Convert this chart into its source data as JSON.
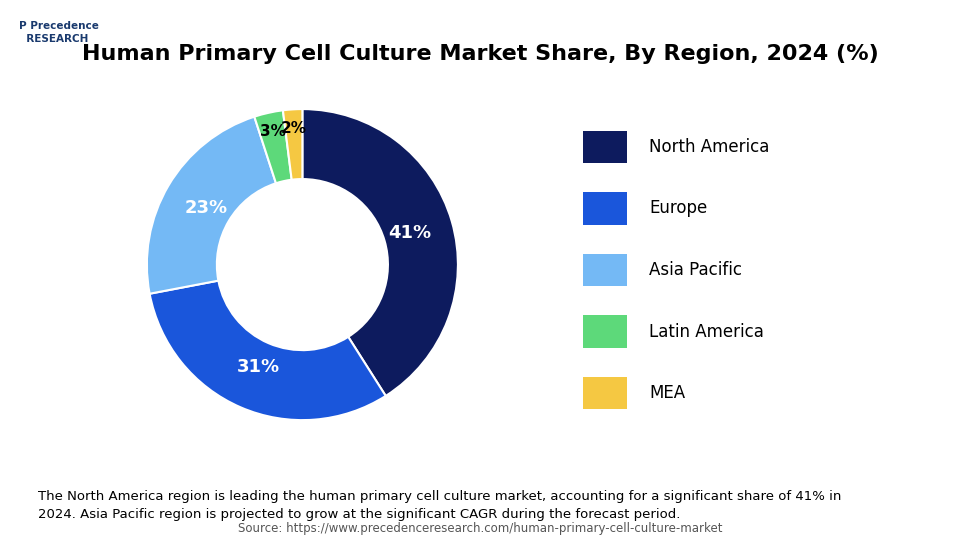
{
  "title": "Human Primary Cell Culture Market Share, By Region, 2024 (%)",
  "slices": [
    41,
    31,
    23,
    3,
    2
  ],
  "labels": [
    "North America",
    "Europe",
    "Asia Pacific",
    "Latin America",
    "MEA"
  ],
  "pct_labels": [
    "41%",
    "31%",
    "23%",
    "3%",
    "2%"
  ],
  "colors": [
    "#0d1b5e",
    "#1a56db",
    "#74b9f5",
    "#5dd97a",
    "#f5c842"
  ],
  "legend_labels": [
    "North America",
    "Europe",
    "Asia Pacific",
    "Latin America",
    "MEA"
  ],
  "legend_colors": [
    "#0d1b5e",
    "#1a56db",
    "#74b9f5",
    "#5dd97a",
    "#f5c842"
  ],
  "footnote": "The North America region is leading the human primary cell culture market, accounting for a significant share of 41% in\n2024. Asia Pacific region is projected to grow at the significant CAGR during the forecast period.",
  "source": "Source: https://www.precedenceresearch.com/human-primary-cell-culture-market",
  "bg_color": "#ffffff",
  "header_bg": "#ffffff",
  "footnote_bg": "#dce8f5",
  "title_fontsize": 16,
  "label_fontsize": 13,
  "legend_fontsize": 12
}
